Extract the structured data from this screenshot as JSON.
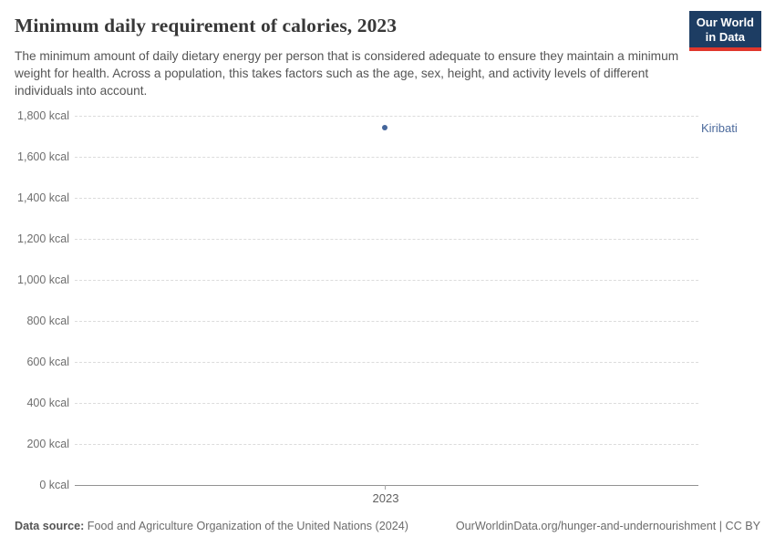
{
  "header": {
    "title": "Minimum daily requirement of calories, 2023",
    "subtitle": "The minimum amount of daily dietary energy per person that is considered adequate to ensure they maintain a minimum weight for health. Across a population, this takes factors such as the age, sex, height, and activity levels of different individuals into account.",
    "logo_line1": "Our World",
    "logo_line2": "in Data"
  },
  "chart_data": {
    "type": "scatter",
    "title": "Minimum daily requirement of calories, 2023",
    "x": [
      2023
    ],
    "series": [
      {
        "name": "Kiribati",
        "values": [
          1742
        ]
      }
    ],
    "unit": "kcal",
    "ylim": [
      0,
      1800
    ],
    "y_tick_interval": 200,
    "y_tick_labels": [
      "1,800 kcal",
      "1,600 kcal",
      "1,400 kcal",
      "1,200 kcal",
      "1,000 kcal",
      "800 kcal",
      "600 kcal",
      "400 kcal",
      "200 kcal",
      "0 kcal"
    ],
    "x_tick_labels": [
      "2023"
    ],
    "grid": "horizontal-dashed",
    "legend_position": "entity-label-right",
    "point_color": "#44659b"
  },
  "footer": {
    "data_source_prefix": "Data source:",
    "data_source": "Food and Agriculture Organization of the United Nations (2024)",
    "url_license": "OurWorldinData.org/hunger-and-undernourishment | CC BY"
  },
  "colors": {
    "accent_blue": "#4c6a9c",
    "logo_background": "#1d3d63",
    "logo_stripe": "#e0372c",
    "gridline": "#dcdcdc",
    "axis_line": "#929292"
  }
}
